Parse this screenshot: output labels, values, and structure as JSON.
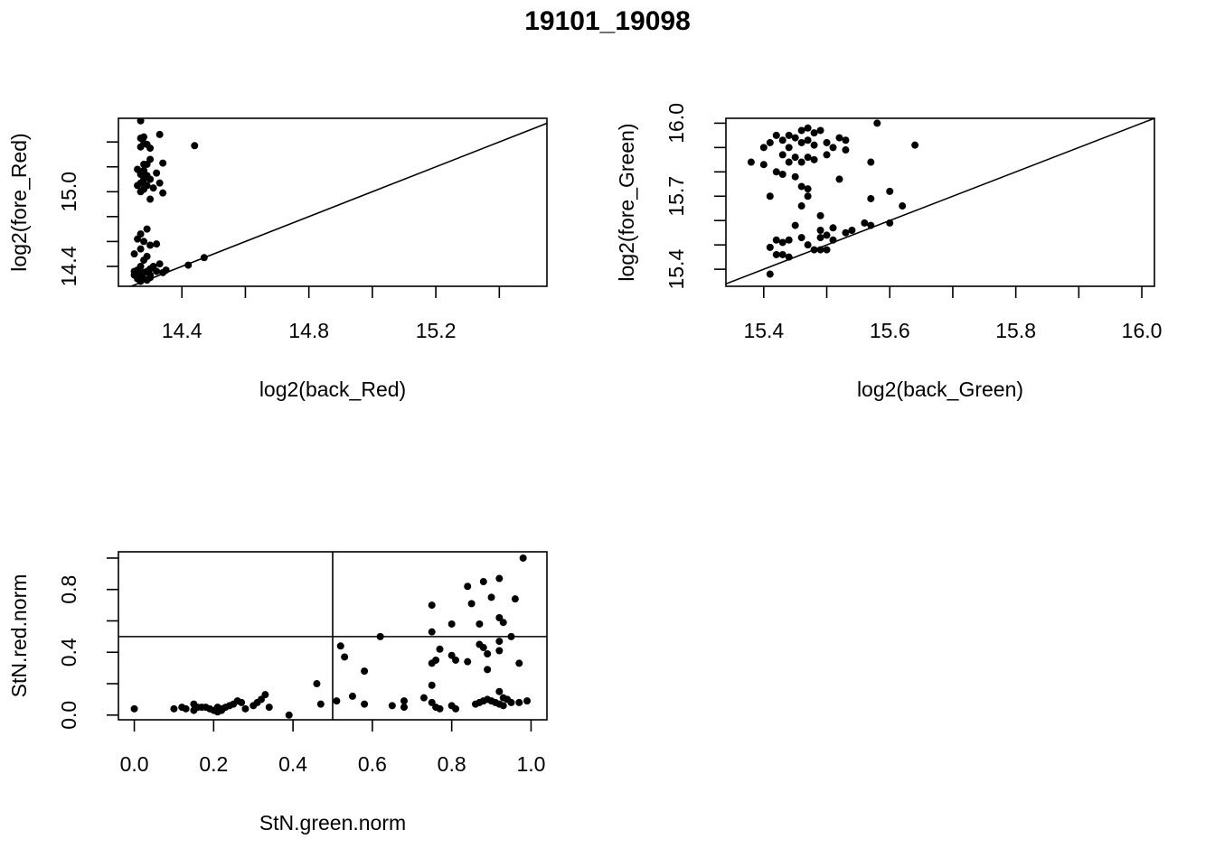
{
  "figure_title": "19101_19098",
  "chart_data": [
    {
      "type": "scatter",
      "xlabel": "log2(back_Red)",
      "ylabel": "log2(fore_Red)",
      "xlim": [
        14.2,
        15.55
      ],
      "ylim": [
        14.24,
        15.59
      ],
      "xticks": [
        14.4,
        14.8,
        15.2
      ],
      "xminor": [
        14.6,
        15.0,
        15.4
      ],
      "yticks": [
        14.4,
        15.0
      ],
      "yminor": [
        14.6,
        14.8,
        15.2,
        15.4
      ],
      "refline": {
        "kind": "diagonal"
      },
      "points": [
        [
          14.27,
          15.57
        ],
        [
          14.28,
          15.44
        ],
        [
          14.27,
          15.43
        ],
        [
          14.33,
          15.46
        ],
        [
          14.28,
          15.39
        ],
        [
          14.29,
          15.38
        ],
        [
          14.27,
          15.36
        ],
        [
          14.3,
          15.35
        ],
        [
          14.44,
          15.37
        ],
        [
          14.3,
          15.26
        ],
        [
          14.34,
          15.23
        ],
        [
          14.29,
          15.22
        ],
        [
          14.28,
          15.22
        ],
        [
          14.26,
          15.18
        ],
        [
          14.28,
          15.17
        ],
        [
          14.32,
          15.15
        ],
        [
          14.29,
          15.13
        ],
        [
          14.27,
          15.14
        ],
        [
          14.3,
          15.1
        ],
        [
          14.28,
          15.1
        ],
        [
          14.27,
          15.07
        ],
        [
          14.33,
          15.07
        ],
        [
          14.26,
          15.05
        ],
        [
          14.29,
          15.05
        ],
        [
          14.31,
          15.03
        ],
        [
          14.28,
          15.02
        ],
        [
          14.27,
          15.0
        ],
        [
          14.34,
          14.99
        ],
        [
          14.3,
          14.94
        ],
        [
          14.29,
          14.7
        ],
        [
          14.27,
          14.66
        ],
        [
          14.26,
          14.62
        ],
        [
          14.28,
          14.6
        ],
        [
          14.3,
          14.57
        ],
        [
          14.32,
          14.58
        ],
        [
          14.27,
          14.54
        ],
        [
          14.25,
          14.5
        ],
        [
          14.29,
          14.48
        ],
        [
          14.28,
          14.45
        ],
        [
          14.33,
          14.42
        ],
        [
          14.31,
          14.4
        ],
        [
          14.27,
          14.4
        ],
        [
          14.3,
          14.38
        ],
        [
          14.26,
          14.37
        ],
        [
          14.29,
          14.36
        ],
        [
          14.28,
          14.35
        ],
        [
          14.25,
          14.33
        ],
        [
          14.27,
          14.32
        ],
        [
          14.3,
          14.31
        ],
        [
          14.28,
          14.3
        ],
        [
          14.32,
          14.36
        ],
        [
          14.26,
          14.3
        ],
        [
          14.29,
          14.29
        ],
        [
          14.27,
          14.28
        ],
        [
          14.3,
          14.33
        ],
        [
          14.35,
          14.37
        ],
        [
          14.42,
          14.41
        ],
        [
          14.47,
          14.47
        ],
        [
          14.34,
          14.35
        ],
        [
          14.25,
          14.36
        ],
        [
          14.26,
          14.34
        ]
      ]
    },
    {
      "type": "scatter",
      "xlabel": "log2(back_Green)",
      "ylabel": "log2(fore_Green)",
      "xlim": [
        15.34,
        16.02
      ],
      "ylim": [
        15.33,
        16.02
      ],
      "xticks": [
        15.4,
        15.6,
        15.8,
        16.0
      ],
      "xminor": [
        15.5,
        15.7,
        15.9
      ],
      "yticks": [
        15.4,
        15.7,
        16.0
      ],
      "yminor": [
        15.5,
        15.6,
        15.8,
        15.9
      ],
      "refline": {
        "kind": "diagonal"
      },
      "points": [
        [
          15.58,
          16.0
        ],
        [
          15.47,
          15.98
        ],
        [
          15.46,
          15.97
        ],
        [
          15.48,
          15.96
        ],
        [
          15.49,
          15.97
        ],
        [
          15.42,
          15.95
        ],
        [
          15.44,
          15.95
        ],
        [
          15.45,
          15.94
        ],
        [
          15.43,
          15.93
        ],
        [
          15.46,
          15.92
        ],
        [
          15.47,
          15.93
        ],
        [
          15.5,
          15.92
        ],
        [
          15.52,
          15.94
        ],
        [
          15.53,
          15.93
        ],
        [
          15.41,
          15.92
        ],
        [
          15.4,
          15.9
        ],
        [
          15.44,
          15.9
        ],
        [
          15.48,
          15.91
        ],
        [
          15.51,
          15.9
        ],
        [
          15.64,
          15.91
        ],
        [
          15.53,
          15.89
        ],
        [
          15.43,
          15.87
        ],
        [
          15.45,
          15.86
        ],
        [
          15.47,
          15.86
        ],
        [
          15.5,
          15.87
        ],
        [
          15.38,
          15.84
        ],
        [
          15.4,
          15.83
        ],
        [
          15.44,
          15.84
        ],
        [
          15.46,
          15.84
        ],
        [
          15.48,
          15.85
        ],
        [
          15.57,
          15.84
        ],
        [
          15.42,
          15.8
        ],
        [
          15.43,
          15.79
        ],
        [
          15.45,
          15.78
        ],
        [
          15.52,
          15.77
        ],
        [
          15.46,
          15.74
        ],
        [
          15.47,
          15.73
        ],
        [
          15.6,
          15.72
        ],
        [
          15.41,
          15.7
        ],
        [
          15.47,
          15.7
        ],
        [
          15.57,
          15.69
        ],
        [
          15.46,
          15.66
        ],
        [
          15.62,
          15.66
        ],
        [
          15.49,
          15.62
        ],
        [
          15.56,
          15.59
        ],
        [
          15.6,
          15.59
        ],
        [
          15.57,
          15.58
        ],
        [
          15.45,
          15.58
        ],
        [
          15.49,
          15.56
        ],
        [
          15.51,
          15.57
        ],
        [
          15.54,
          15.56
        ],
        [
          15.53,
          15.55
        ],
        [
          15.5,
          15.54
        ],
        [
          15.49,
          15.53
        ],
        [
          15.51,
          15.52
        ],
        [
          15.46,
          15.53
        ],
        [
          15.42,
          15.52
        ],
        [
          15.43,
          15.51
        ],
        [
          15.44,
          15.52
        ],
        [
          15.47,
          15.5
        ],
        [
          15.49,
          15.48
        ],
        [
          15.48,
          15.48
        ],
        [
          15.5,
          15.48
        ],
        [
          15.41,
          15.49
        ],
        [
          15.42,
          15.46
        ],
        [
          15.43,
          15.46
        ],
        [
          15.44,
          15.45
        ],
        [
          15.41,
          15.38
        ]
      ]
    },
    {
      "type": "scatter",
      "xlabel": "StN.green.norm",
      "ylabel": "StN.red.norm",
      "xlim": [
        -0.04,
        1.04
      ],
      "ylim": [
        -0.03,
        1.04
      ],
      "xticks": [
        0.0,
        0.2,
        0.4,
        0.6,
        0.8,
        1.0
      ],
      "xminor": [],
      "yticks": [
        0.0,
        0.4,
        0.8
      ],
      "yminor": [
        0.2,
        0.6,
        1.0
      ],
      "refline": {
        "kind": "cross",
        "x": 0.5,
        "y": 0.5
      },
      "points": [
        [
          0.98,
          1.0
        ],
        [
          0.92,
          0.87
        ],
        [
          0.88,
          0.85
        ],
        [
          0.84,
          0.82
        ],
        [
          0.9,
          0.75
        ],
        [
          0.96,
          0.74
        ],
        [
          0.75,
          0.7
        ],
        [
          0.85,
          0.71
        ],
        [
          0.92,
          0.62
        ],
        [
          0.93,
          0.59
        ],
        [
          0.8,
          0.58
        ],
        [
          0.87,
          0.58
        ],
        [
          0.75,
          0.53
        ],
        [
          0.95,
          0.5
        ],
        [
          0.62,
          0.5
        ],
        [
          0.92,
          0.47
        ],
        [
          0.87,
          0.45
        ],
        [
          0.88,
          0.43
        ],
        [
          0.89,
          0.39
        ],
        [
          0.77,
          0.42
        ],
        [
          0.52,
          0.44
        ],
        [
          0.92,
          0.41
        ],
        [
          0.8,
          0.38
        ],
        [
          0.53,
          0.37
        ],
        [
          0.75,
          0.33
        ],
        [
          0.76,
          0.35
        ],
        [
          0.84,
          0.34
        ],
        [
          0.81,
          0.35
        ],
        [
          0.97,
          0.33
        ],
        [
          0.58,
          0.28
        ],
        [
          0.89,
          0.29
        ],
        [
          0.46,
          0.2
        ],
        [
          0.75,
          0.19
        ],
        [
          0.33,
          0.13
        ],
        [
          0.73,
          0.11
        ],
        [
          0.55,
          0.12
        ],
        [
          0.47,
          0.07
        ],
        [
          0.51,
          0.09
        ],
        [
          0.58,
          0.07
        ],
        [
          0.65,
          0.06
        ],
        [
          0.68,
          0.09
        ],
        [
          0.68,
          0.05
        ],
        [
          0.75,
          0.08
        ],
        [
          0.76,
          0.05
        ],
        [
          0.77,
          0.04
        ],
        [
          0.8,
          0.06
        ],
        [
          0.81,
          0.04
        ],
        [
          0.86,
          0.07
        ],
        [
          0.87,
          0.08
        ],
        [
          0.88,
          0.09
        ],
        [
          0.89,
          0.1
        ],
        [
          0.9,
          0.09
        ],
        [
          0.91,
          0.08
        ],
        [
          0.92,
          0.15
        ],
        [
          0.93,
          0.11
        ],
        [
          0.94,
          0.1
        ],
        [
          0.92,
          0.07
        ],
        [
          0.93,
          0.06
        ],
        [
          0.95,
          0.08
        ],
        [
          0.97,
          0.08
        ],
        [
          0.99,
          0.09
        ],
        [
          0.0,
          0.04
        ],
        [
          0.1,
          0.04
        ],
        [
          0.12,
          0.05
        ],
        [
          0.13,
          0.04
        ],
        [
          0.15,
          0.07
        ],
        [
          0.16,
          0.05
        ],
        [
          0.15,
          0.03
        ],
        [
          0.17,
          0.05
        ],
        [
          0.18,
          0.05
        ],
        [
          0.19,
          0.04
        ],
        [
          0.2,
          0.03
        ],
        [
          0.21,
          0.05
        ],
        [
          0.22,
          0.04
        ],
        [
          0.21,
          0.02
        ],
        [
          0.22,
          0.03
        ],
        [
          0.23,
          0.05
        ],
        [
          0.24,
          0.06
        ],
        [
          0.25,
          0.07
        ],
        [
          0.26,
          0.09
        ],
        [
          0.27,
          0.08
        ],
        [
          0.28,
          0.04
        ],
        [
          0.3,
          0.06
        ],
        [
          0.31,
          0.08
        ],
        [
          0.32,
          0.1
        ],
        [
          0.34,
          0.05
        ],
        [
          0.39,
          0.0
        ]
      ]
    }
  ]
}
